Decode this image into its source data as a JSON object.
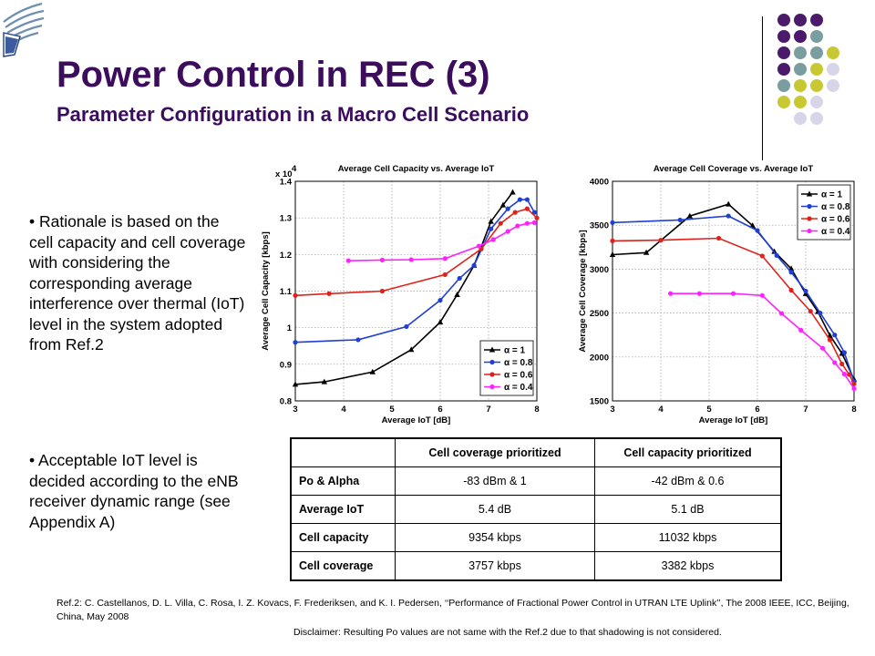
{
  "title": "Power Control in REC (3)",
  "subtitle": "Parameter Configuration in a Macro Cell Scenario",
  "bullets": [
    "Rationale is based on the cell capacity and cell coverage with considering the corresponding average interference over thermal (IoT) level in the system adopted from Ref.2",
    "Acceptable IoT level is decided according to the eNB receiver dynamic range (see Appendix A)"
  ],
  "colors": {
    "title": "#3b0d5c",
    "dot_purple": "#4b1a6a",
    "dot_teal": "#7a9e9f",
    "dot_olive": "#c8c832",
    "dot_lavender": "#d6d6e8"
  },
  "chart_data": [
    {
      "type": "line",
      "title": "Average Cell Capacity vs. Average IoT",
      "xlabel": "Average IoT [dB]",
      "ylabel": "Average Cell Capacity [kbps]",
      "y_multiplier_label": "x 10",
      "y_multiplier_exp": "4",
      "xlim": [
        3,
        8
      ],
      "ylim": [
        0.8,
        1.4
      ],
      "xticks": [
        "3",
        "4",
        "5",
        "6",
        "7",
        "8"
      ],
      "yticks": [
        "0.8",
        "0.9",
        "1",
        "1.1",
        "1.2",
        "1.3",
        "1.4"
      ],
      "grid": true,
      "legend_position": "bottom-right",
      "series": [
        {
          "name": "α = 1",
          "color": "#000000",
          "marker": "triangle",
          "points": [
            [
              3.0,
              0.845
            ],
            [
              3.6,
              0.852
            ],
            [
              4.6,
              0.879
            ],
            [
              5.4,
              0.94
            ],
            [
              6.0,
              1.015
            ],
            [
              6.35,
              1.09
            ],
            [
              6.7,
              1.17
            ],
            [
              7.05,
              1.29
            ],
            [
              7.3,
              1.335
            ],
            [
              7.5,
              1.37
            ]
          ]
        },
        {
          "name": "α = 0.8",
          "color": "#1f3fd6",
          "marker": "dot",
          "points": [
            [
              3.0,
              0.96
            ],
            [
              4.3,
              0.967
            ],
            [
              5.3,
              1.003
            ],
            [
              6.0,
              1.075
            ],
            [
              6.4,
              1.135
            ],
            [
              6.7,
              1.17
            ],
            [
              7.05,
              1.27
            ],
            [
              7.4,
              1.325
            ],
            [
              7.65,
              1.35
            ],
            [
              7.8,
              1.35
            ],
            [
              7.95,
              1.315
            ]
          ]
        },
        {
          "name": "α = 0.6",
          "color": "#e0201b",
          "marker": "dot",
          "points": [
            [
              3.0,
              1.088
            ],
            [
              3.7,
              1.093
            ],
            [
              4.8,
              1.1
            ],
            [
              6.1,
              1.145
            ],
            [
              6.85,
              1.215
            ],
            [
              7.25,
              1.285
            ],
            [
              7.55,
              1.315
            ],
            [
              7.8,
              1.325
            ],
            [
              8.0,
              1.3
            ]
          ]
        },
        {
          "name": "α = 0.4",
          "color": "#ff22ff",
          "marker": "dot",
          "points": [
            [
              4.1,
              1.183
            ],
            [
              4.8,
              1.185
            ],
            [
              5.4,
              1.186
            ],
            [
              6.1,
              1.189
            ],
            [
              6.8,
              1.223
            ],
            [
              7.1,
              1.241
            ],
            [
              7.4,
              1.263
            ],
            [
              7.6,
              1.278
            ],
            [
              7.8,
              1.285
            ],
            [
              7.95,
              1.287
            ]
          ]
        }
      ]
    },
    {
      "type": "line",
      "title": "Average Cell Coverage vs. Average IoT",
      "xlabel": "Average IoT [dB]",
      "ylabel": "Average Cell Coverage [kbps]",
      "xlim": [
        3,
        8
      ],
      "ylim": [
        1500,
        4000
      ],
      "xticks": [
        "3",
        "4",
        "5",
        "6",
        "7",
        "8"
      ],
      "yticks": [
        "1500",
        "2000",
        "2500",
        "3000",
        "3500",
        "4000"
      ],
      "grid": true,
      "legend_position": "top-right",
      "series": [
        {
          "name": "α = 1",
          "color": "#000000",
          "marker": "triangle",
          "points": [
            [
              3.0,
              3165
            ],
            [
              3.7,
              3188
            ],
            [
              4.6,
              3605
            ],
            [
              5.4,
              3740
            ],
            [
              5.9,
              3495
            ],
            [
              6.35,
              3200
            ],
            [
              6.7,
              3005
            ],
            [
              7.0,
              2720
            ],
            [
              7.25,
              2515
            ],
            [
              7.5,
              2245
            ],
            [
              7.75,
              2040
            ],
            [
              8.0,
              1745
            ]
          ]
        },
        {
          "name": "α = 0.8",
          "color": "#1f3fd6",
          "marker": "dot",
          "points": [
            [
              3.0,
              3530
            ],
            [
              4.4,
              3560
            ],
            [
              5.4,
              3605
            ],
            [
              6.0,
              3440
            ],
            [
              6.4,
              3155
            ],
            [
              6.7,
              2965
            ],
            [
              7.0,
              2750
            ],
            [
              7.3,
              2500
            ],
            [
              7.6,
              2250
            ],
            [
              7.8,
              2050
            ],
            [
              8.0,
              1720
            ]
          ]
        },
        {
          "name": "α = 0.6",
          "color": "#e0201b",
          "marker": "dot",
          "points": [
            [
              3.0,
              3322
            ],
            [
              4.0,
              3330
            ],
            [
              5.2,
              3352
            ],
            [
              6.1,
              3150
            ],
            [
              6.7,
              2760
            ],
            [
              7.1,
              2520
            ],
            [
              7.5,
              2195
            ],
            [
              7.75,
              1920
            ],
            [
              7.9,
              1800
            ],
            [
              8.0,
              1695
            ]
          ]
        },
        {
          "name": "α = 0.4",
          "color": "#ff22ff",
          "marker": "dot",
          "points": [
            [
              4.2,
              2722
            ],
            [
              4.8,
              2722
            ],
            [
              5.5,
              2722
            ],
            [
              6.1,
              2700
            ],
            [
              6.5,
              2495
            ],
            [
              6.9,
              2305
            ],
            [
              7.35,
              2100
            ],
            [
              7.6,
              1935
            ],
            [
              7.8,
              1805
            ],
            [
              8.0,
              1640
            ]
          ]
        }
      ]
    }
  ],
  "table": {
    "headers": [
      "",
      "Cell coverage prioritized",
      "Cell capacity prioritized"
    ],
    "rows": [
      [
        "Po & Alpha",
        "-83 dBm & 1",
        "-42 dBm & 0.6"
      ],
      [
        "Average IoT",
        "5.4 dB",
        "5.1 dB"
      ],
      [
        "Cell capacity",
        "9354 kbps",
        "11032 kbps"
      ],
      [
        "Cell coverage",
        "3757 kbps",
        "3382 kbps"
      ]
    ]
  },
  "reference": "Ref.2: C. Castellanos, D. L. Villa, C. Rosa, I. Z. Kovacs, F. Frederiksen, and K. I. Pedersen, ‘‘Performance of Fractional Power Control in UTRAN LTE Uplink’’, The 2008 IEEE, ICC, Beijing, China, May 2008",
  "disclaimer": "Disclaimer: Resulting Po values are not same with the Ref.2 due to that shadowing is not considered."
}
